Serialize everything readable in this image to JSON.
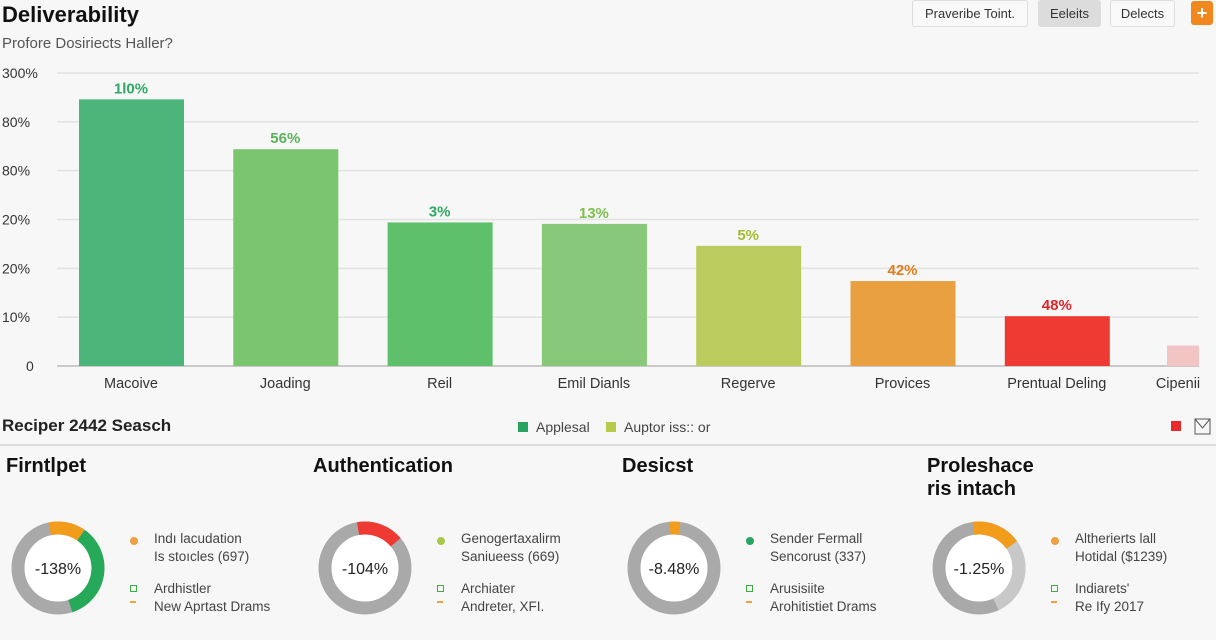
{
  "header": {
    "title": "Deliverability",
    "subtitle": "Profore Dosiriects Haller?",
    "buttons": [
      "Praveribe Toint.",
      "Eeleits",
      "Delects"
    ],
    "add_icon": "plus-icon"
  },
  "chart_data": {
    "type": "bar",
    "y_tick_labels": [
      "0",
      "10%",
      "20%",
      "20%",
      "80%",
      "80%",
      "300%"
    ],
    "grid": true,
    "categories": [
      "Macoive",
      "Joading",
      "Reil",
      "Emil Dianls",
      "Regerve",
      "Provices",
      "Prentual Deling",
      "Cipenii"
    ],
    "data_labels": [
      "1l0%",
      "56%",
      "3%",
      "13%",
      "5%",
      "42%",
      "48%",
      ""
    ],
    "fill_fraction_of_axis": [
      0.91,
      0.74,
      0.49,
      0.485,
      0.41,
      0.29,
      0.17,
      0.07
    ],
    "colors": [
      "#4bb57a",
      "#7cc570",
      "#5ec06b",
      "#88c87a",
      "#bccb5e",
      "#e9a040",
      "#ee3a32",
      "#f3c4c4"
    ],
    "label_colors": [
      "#2fa866",
      "#5bb25a",
      "#2fa866",
      "#7cc04e",
      "#a6bb2e",
      "#e07e1a",
      "#e0262a",
      "#e0262a"
    ]
  },
  "section": {
    "title": "Reciper 2442 Seasch",
    "legend": [
      {
        "label": "Applesal",
        "color": "#27a560"
      },
      {
        "label": "Auptor iss:: or",
        "color": "#b9c94a"
      }
    ],
    "legend_extra_color": "#e8282a",
    "mail_icon": "envelope-icon"
  },
  "cards": [
    {
      "title": "Firntlpet",
      "center": "-138%",
      "line1": "Indı lacudation",
      "line2": "Is stoıcles (697)",
      "line3": "Ardhistler",
      "line4": "New Aprtast Drams",
      "dot": "#f0a040",
      "segments": [
        {
          "from": -12,
          "to": 35,
          "color": "#f29c1c"
        },
        {
          "from": 35,
          "to": 162,
          "color": "#27a95a"
        }
      ]
    },
    {
      "title": "Authentication",
      "center": "-104%",
      "line1": "Genogertaxalirm",
      "line2": "Saniueess (669)",
      "line3": "Archiater",
      "line4": "Andreter, XFI.",
      "dot": "#a8c84a",
      "segments": [
        {
          "from": -10,
          "to": 50,
          "color": "#ee3a32"
        }
      ]
    },
    {
      "title": "Desicst",
      "center": "-8.48%",
      "line1": "Sender Fermall",
      "line2": "Sencorust (337)",
      "line3": "Arusisiite",
      "line4": "Arohitistiet Drams",
      "dot": "#27a560",
      "segments": [
        {
          "from": -6,
          "to": 8,
          "color": "#f29c1c"
        }
      ]
    },
    {
      "title": "Proleshace ris intach",
      "center": "-1.25%",
      "line1": "Altherierts lall",
      "line2": "Hotidal ($1239)",
      "line3": "Indiarets'",
      "line4": "Re Ify 2017",
      "dot": "#f0a040",
      "segments": [
        {
          "from": -8,
          "to": 55,
          "color": "#f29c1c"
        },
        {
          "from": 55,
          "to": 155,
          "color": "#c8c8c8"
        }
      ]
    }
  ]
}
